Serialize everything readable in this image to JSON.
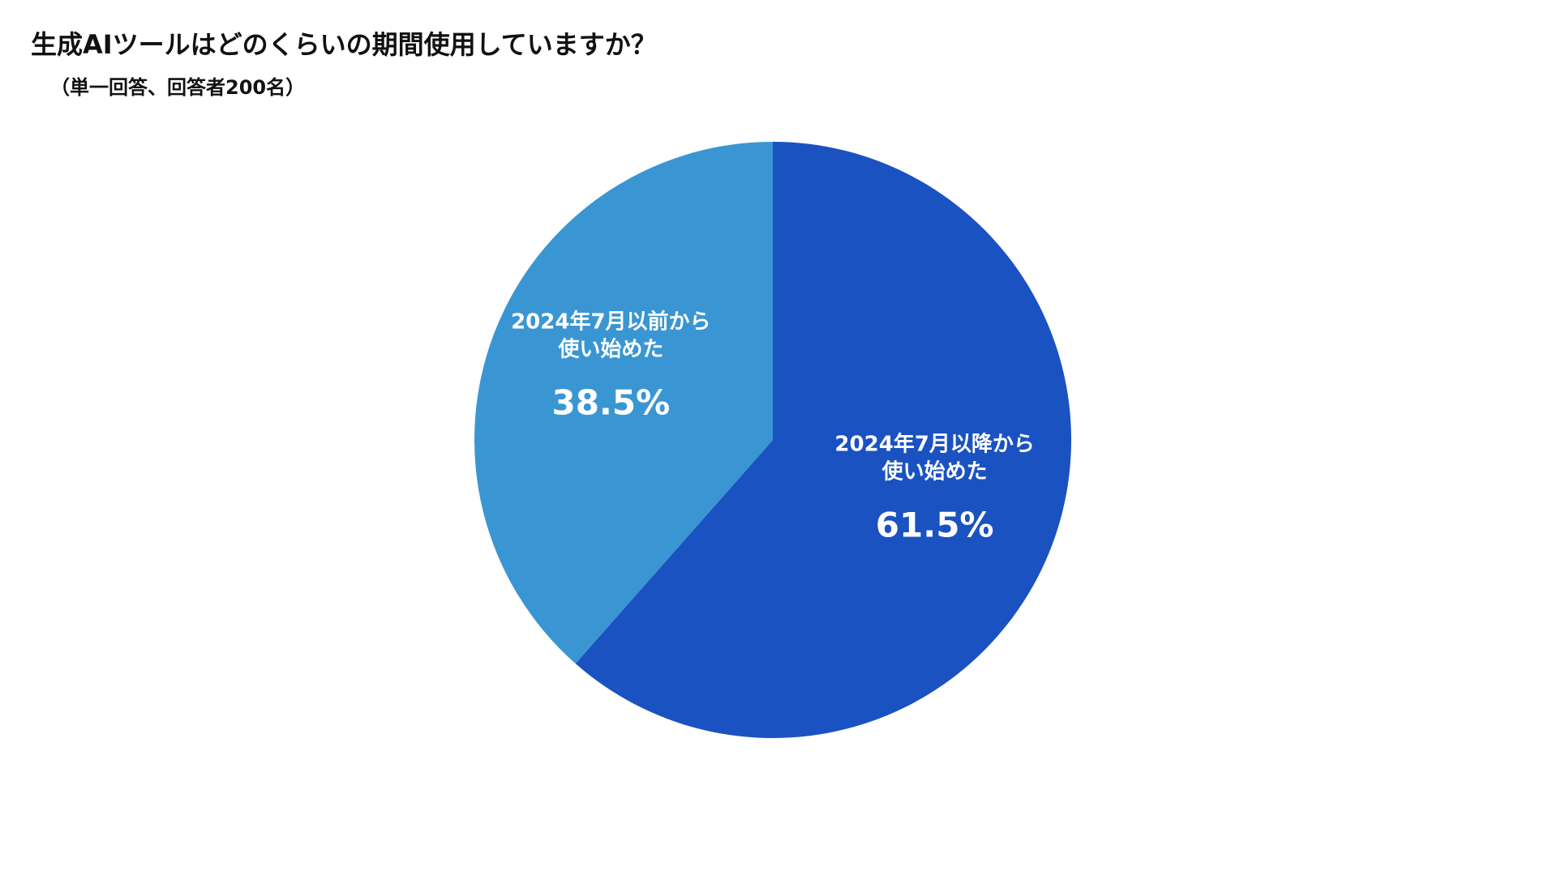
{
  "chart_data": {
    "type": "pie",
    "title": "生成AIツールはどのくらいの期間使用していますか？",
    "subtitle": "（単一回答、回答者200名）",
    "slices": [
      {
        "label_lines": [
          "2024年7月以降から",
          "使い始めた"
        ],
        "value": 61.5,
        "value_label": "61.5%",
        "color": "#1b52c2"
      },
      {
        "label_lines": [
          "2024年7月以前から",
          "使い始めた"
        ],
        "value": 38.5,
        "value_label": "38.5%",
        "color": "#3a96d3"
      }
    ]
  }
}
